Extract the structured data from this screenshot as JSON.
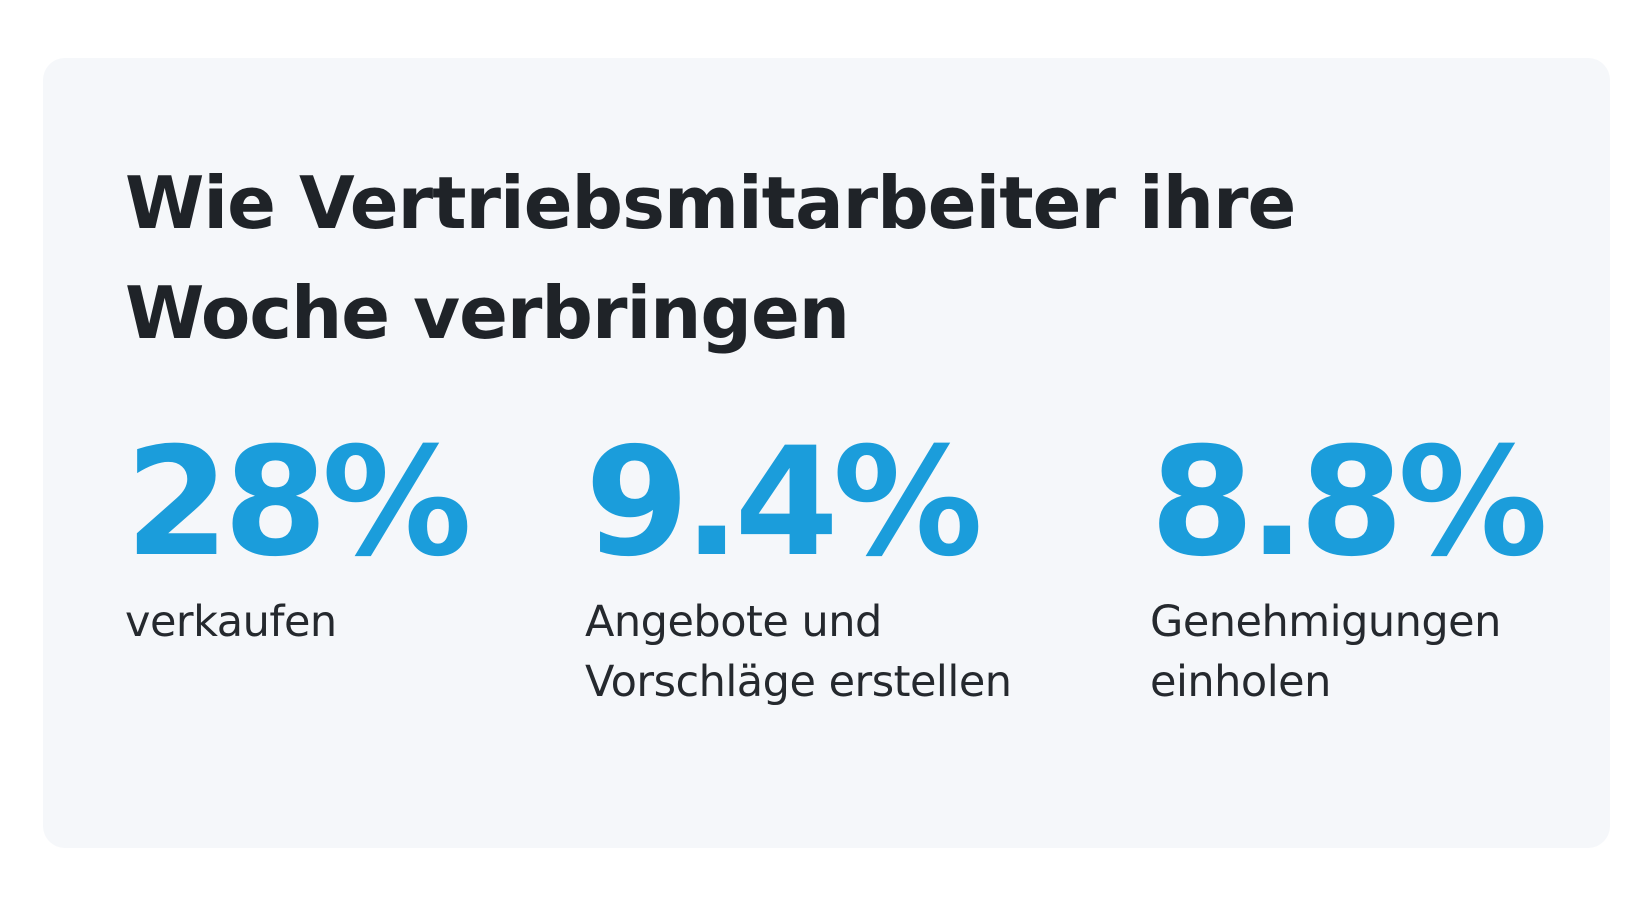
{
  "title": {
    "line1": "Wie Vertriebsmitarbeiter ihre",
    "line2": "Woche verbringen"
  },
  "stats": [
    {
      "value": "28%",
      "label_lines": [
        "verkaufen"
      ]
    },
    {
      "value": "9.4%",
      "label_lines": [
        "Angebote und",
        "Vorschläge erstellen"
      ]
    },
    {
      "value": "8.8%",
      "label_lines": [
        "Genehmigungen",
        "einholen"
      ]
    }
  ],
  "colors": {
    "accent": "#1b9ddb",
    "title": "#1f2328",
    "text": "#25292e",
    "card_background": "#f5f7fa"
  }
}
